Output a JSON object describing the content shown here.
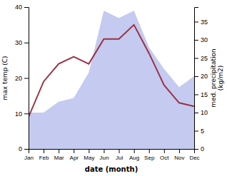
{
  "chart_data": {
    "type": "line",
    "xlabel": "date (month)",
    "ylabel": "max temp (C)",
    "y2label": "med. precipitation\n(kg/m2)",
    "categories": [
      "Jan",
      "Feb",
      "Mar",
      "Apr",
      "May",
      "Jun",
      "Jul",
      "Aug",
      "Sep",
      "Oct",
      "Nov",
      "Dec"
    ],
    "series": [
      {
        "type": "area",
        "axis": "y2",
        "color": "#c5caf0",
        "values": [
          10,
          10,
          13,
          14,
          21,
          38,
          36,
          38,
          28,
          22,
          17,
          20
        ]
      },
      {
        "type": "line",
        "color": "#993344",
        "values": [
          9,
          19,
          24,
          26,
          24,
          31,
          31,
          35,
          27,
          18,
          13,
          12
        ]
      }
    ],
    "ylim": [
      0,
      40
    ],
    "yticks": [
      0,
      10,
      20,
      30,
      40
    ],
    "y2lim": [
      0,
      39
    ],
    "y2ticks": [
      0,
      5,
      10,
      15,
      20,
      25,
      30,
      35
    ],
    "grid": false
  }
}
